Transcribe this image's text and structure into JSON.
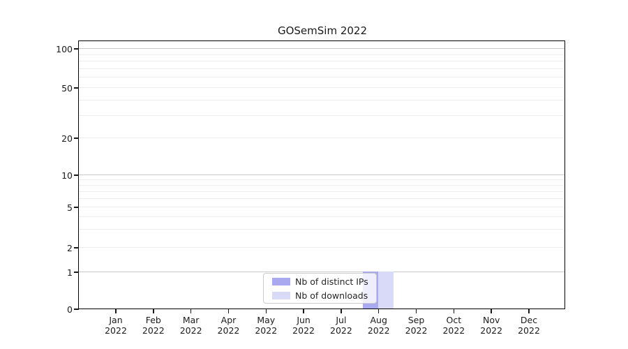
{
  "title": "GOSemSim 2022",
  "chart_data": {
    "type": "bar",
    "title": "GOSemSim 2022",
    "x_year": "2022",
    "categories": [
      "Jan",
      "Feb",
      "Mar",
      "Apr",
      "May",
      "Jun",
      "Jul",
      "Aug",
      "Sep",
      "Oct",
      "Nov",
      "Dec"
    ],
    "series": [
      {
        "name": "Nb of distinct IPs",
        "color": "#a9a9f0",
        "values": [
          0,
          0,
          0,
          0,
          0,
          0,
          0,
          1,
          0,
          0,
          0,
          0
        ]
      },
      {
        "name": "Nb of downloads",
        "color": "#d9d9f8",
        "values": [
          0,
          0,
          0,
          0,
          0,
          0,
          0,
          1,
          0,
          0,
          0,
          0
        ]
      }
    ],
    "yticks": [
      0,
      1,
      2,
      5,
      10,
      20,
      50,
      100
    ],
    "yscale": "log above 1, linear segment 0-1 (symlog-like)",
    "ylim": [
      0,
      113
    ],
    "grid": "horizontal log gridlines, majors at 1/10/100",
    "legend_position": "lower center inside plot"
  },
  "colors": {
    "series_distinct_ips": "#a9a9f0",
    "series_downloads": "#d9d9f8",
    "major_grid": "#c9c9c9",
    "minor_grid": "#ededed",
    "axis": "#000000",
    "text": "#1a1a1a",
    "background": "#ffffff",
    "legend_border": "#cccccc"
  }
}
